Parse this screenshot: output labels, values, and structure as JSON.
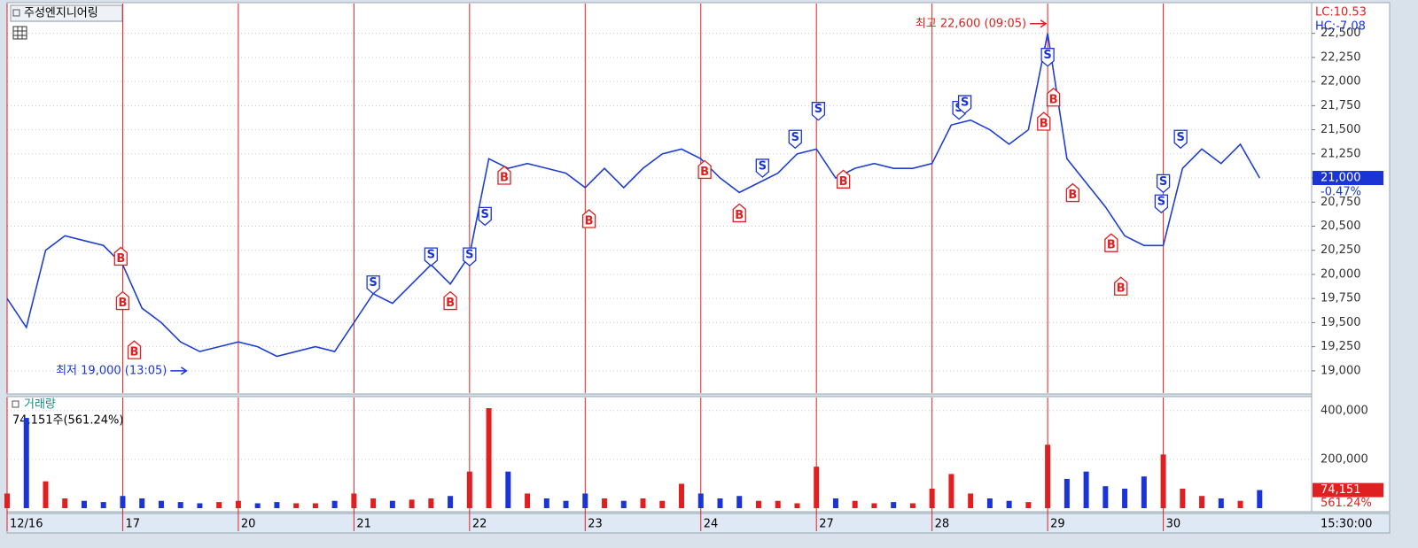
{
  "chart_data": [
    {
      "type": "line",
      "title": "주성엔지니어링",
      "x": [
        0,
        1,
        2,
        3,
        4,
        5,
        6,
        7,
        8,
        9,
        10,
        11,
        12,
        13,
        14,
        15,
        16,
        17,
        18,
        19,
        20,
        21,
        22,
        23,
        24,
        25,
        26,
        27,
        28,
        29,
        30,
        31,
        32,
        33,
        34,
        35,
        36,
        37,
        38,
        39,
        40,
        41,
        42,
        43,
        44,
        45,
        46,
        47,
        48,
        49,
        50,
        51,
        52,
        53,
        54,
        55,
        56,
        57,
        58,
        59,
        60,
        61,
        62,
        63,
        64,
        65
      ],
      "series": [
        {
          "color": "#1f3fd0",
          "values": [
            19750,
            19450,
            20250,
            20400,
            20350,
            20300,
            20100,
            19650,
            19500,
            19300,
            19200,
            19250,
            19300,
            19250,
            19150,
            19200,
            19250,
            19200,
            19500,
            19800,
            19700,
            19900,
            20100,
            19900,
            20200,
            21200,
            21100,
            21150,
            21100,
            21050,
            20900,
            21100,
            20900,
            21100,
            21250,
            21300,
            21200,
            21000,
            20850,
            20950,
            21050,
            21250,
            21300,
            21000,
            21100,
            21150,
            21100,
            21100,
            21150,
            21550,
            21600,
            21500,
            21350,
            21500,
            22500,
            21200,
            20950,
            20700,
            20400,
            20300,
            20300,
            21100,
            21300,
            21150,
            21350,
            21000
          ]
        }
      ],
      "xlim": [
        0,
        67.7
      ],
      "ylim": [
        18760,
        22800
      ],
      "yticks": [
        {
          "value": 19000,
          "label": "19,000"
        },
        {
          "value": 19250,
          "label": "19,250"
        },
        {
          "value": 19500,
          "label": "19,500"
        },
        {
          "value": 19750,
          "label": "19,750"
        },
        {
          "value": 20000,
          "label": "20,000"
        },
        {
          "value": 20250,
          "label": "20,250"
        },
        {
          "value": 20500,
          "label": "20,500"
        },
        {
          "value": 20750,
          "label": "20,750"
        },
        {
          "value": 21000,
          "label": "21,000"
        },
        {
          "value": 21250,
          "label": "21,250"
        },
        {
          "value": 21500,
          "label": "21,500"
        },
        {
          "value": 21750,
          "label": "21,750"
        },
        {
          "value": 22000,
          "label": "22,000"
        },
        {
          "value": 22250,
          "label": "22,250"
        },
        {
          "value": 22500,
          "label": "22,500"
        }
      ],
      "grid": true,
      "lc": "LC:10.53",
      "hc": "HC:-7.08",
      "last": {
        "value": 21000,
        "label": "21,000"
      },
      "change": "-0.47%",
      "annotations": [
        {
          "label": "최고 22,600 (09:05)",
          "x": 54.0,
          "value": 22600,
          "color": "#e02020"
        },
        {
          "label": "최저 19,000 (13:05)",
          "x": 9.4,
          "value": 19000,
          "color": "#1a35d4"
        }
      ],
      "buy": {
        "label": "B",
        "color": "#e02020",
        "points": [
          {
            "x": 5.9,
            "price": 20280
          },
          {
            "x": 6.0,
            "price": 19820
          },
          {
            "x": 6.6,
            "price": 19310
          },
          {
            "x": 23.0,
            "price": 19820
          },
          {
            "x": 25.8,
            "price": 21120
          },
          {
            "x": 30.2,
            "price": 20670
          },
          {
            "x": 36.2,
            "price": 21180
          },
          {
            "x": 38.0,
            "price": 20730
          },
          {
            "x": 43.4,
            "price": 21080
          },
          {
            "x": 53.8,
            "price": 21680
          },
          {
            "x": 54.3,
            "price": 21930
          },
          {
            "x": 55.3,
            "price": 20940
          },
          {
            "x": 57.3,
            "price": 20420
          },
          {
            "x": 57.8,
            "price": 19970
          }
        ]
      },
      "sell": {
        "label": "S",
        "color": "#1a35d4",
        "points": [
          {
            "x": 19.0,
            "price": 19800
          },
          {
            "x": 22.0,
            "price": 20090
          },
          {
            "x": 24.0,
            "price": 20090
          },
          {
            "x": 24.8,
            "price": 20510
          },
          {
            "x": 39.2,
            "price": 21010
          },
          {
            "x": 40.9,
            "price": 21310
          },
          {
            "x": 42.1,
            "price": 21600
          },
          {
            "x": 49.4,
            "price": 21610
          },
          {
            "x": 49.7,
            "price": 21670
          },
          {
            "x": 54.0,
            "price": 22160
          },
          {
            "x": 59.9,
            "price": 20640
          },
          {
            "x": 60.0,
            "price": 20850
          },
          {
            "x": 60.9,
            "price": 21310
          }
        ]
      }
    },
    {
      "type": "bar",
      "title": "거래량",
      "summary": "74,151주(561.24%)",
      "x": [
        0,
        1,
        2,
        3,
        4,
        5,
        6,
        7,
        8,
        9,
        10,
        11,
        12,
        13,
        14,
        15,
        16,
        17,
        18,
        19,
        20,
        21,
        22,
        23,
        24,
        25,
        26,
        27,
        28,
        29,
        30,
        31,
        32,
        33,
        34,
        35,
        36,
        37,
        38,
        39,
        40,
        41,
        42,
        43,
        44,
        45,
        46,
        47,
        48,
        49,
        50,
        51,
        52,
        53,
        54,
        55,
        56,
        57,
        58,
        59,
        60,
        61,
        62,
        63,
        64,
        65
      ],
      "values": [
        60000,
        370000,
        110000,
        40000,
        30000,
        25000,
        50000,
        40000,
        30000,
        25000,
        20000,
        25000,
        30000,
        20000,
        25000,
        20000,
        20000,
        30000,
        60000,
        40000,
        30000,
        35000,
        40000,
        50000,
        150000,
        410000,
        150000,
        60000,
        40000,
        30000,
        60000,
        40000,
        30000,
        40000,
        30000,
        100000,
        60000,
        40000,
        50000,
        30000,
        30000,
        20000,
        170000,
        40000,
        30000,
        20000,
        25000,
        20000,
        80000,
        140000,
        60000,
        40000,
        30000,
        25000,
        260000,
        120000,
        150000,
        90000,
        80000,
        130000,
        220000,
        80000,
        50000,
        40000,
        30000,
        74151
      ],
      "up_color": "#e02020",
      "down_color": "#1a35d4",
      "xlim": [
        0,
        67.7
      ],
      "ylim": [
        0,
        450000
      ],
      "yticks": [
        {
          "value": 200000,
          "label": "200,000"
        },
        {
          "value": 400000,
          "label": "400,000"
        }
      ],
      "xticks": [
        {
          "value": 0,
          "label": "12/16"
        },
        {
          "value": 6,
          "label": "17"
        },
        {
          "value": 12,
          "label": "20"
        },
        {
          "value": 18,
          "label": "21"
        },
        {
          "value": 24,
          "label": "22"
        },
        {
          "value": 30,
          "label": "23"
        },
        {
          "value": 36,
          "label": "24"
        },
        {
          "value": 42,
          "label": "27"
        },
        {
          "value": 48,
          "label": "28"
        },
        {
          "value": 54,
          "label": "29"
        },
        {
          "value": 60,
          "label": "30"
        }
      ],
      "divider_color": "#e02020",
      "last": {
        "value": 74151,
        "label": "74,151"
      },
      "change": "561.24%",
      "time_label": "15:30:00"
    }
  ]
}
